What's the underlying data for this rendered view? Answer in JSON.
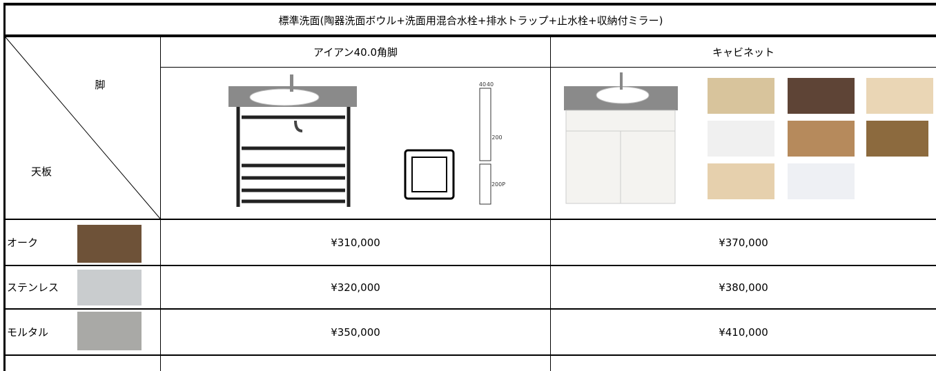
{
  "header": {
    "title": "標準洗面(陶器洗面ボウル+洗面用混合水栓+排水トラップ+止水栓+収納付ミラー)"
  },
  "table": {
    "corner": {
      "top": "脚",
      "bottom": "天板"
    },
    "columns": [
      "アイアン40.0角脚",
      "キャビネット"
    ],
    "drawing_labels": [
      "40",
      "40",
      "200",
      "200P"
    ],
    "rows": [
      {
        "label": "オーク",
        "prices": [
          "¥310,000",
          "¥370,000"
        ]
      },
      {
        "label": "ステンレス",
        "prices": [
          "¥320,000",
          "¥380,000"
        ]
      },
      {
        "label": "モルタル",
        "prices": [
          "¥350,000",
          "¥410,000"
        ]
      }
    ]
  }
}
